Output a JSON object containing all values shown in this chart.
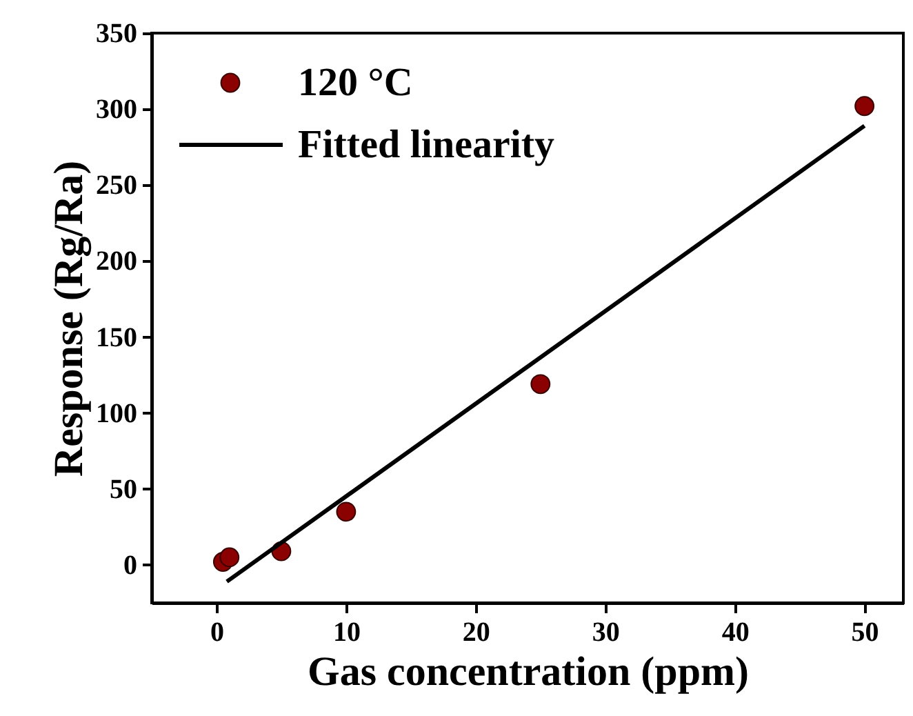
{
  "chart_data": {
    "type": "scatter",
    "xlabel": "Gas concentration (ppm)",
    "ylabel": "Response (Rg/Ra)",
    "xlim": [
      -5,
      53
    ],
    "ylim": [
      -25,
      350
    ],
    "xticks": [
      0,
      10,
      20,
      30,
      40,
      50
    ],
    "yticks": [
      0,
      50,
      100,
      150,
      200,
      250,
      300,
      350
    ],
    "grid": false,
    "legend": "top left",
    "series": [
      {
        "name": "120 °C",
        "color": "#8b0000",
        "marker": "circle",
        "x": [
          0.5,
          1,
          5,
          10,
          25,
          50
        ],
        "values": [
          2,
          5,
          9,
          35,
          119,
          302
        ]
      },
      {
        "name": "Fitted linearity",
        "type": "line",
        "color": "#000000",
        "line_style": "solid",
        "x": [
          0.8,
          50
        ],
        "values": [
          -11,
          289
        ]
      }
    ]
  }
}
